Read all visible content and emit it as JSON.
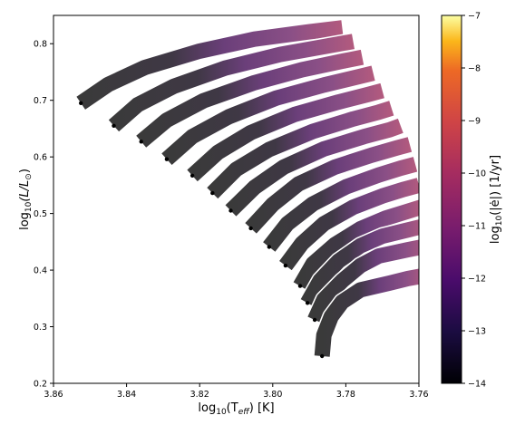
{
  "chart_data": {
    "type": "line",
    "title": "",
    "xlabel_prefix": "log",
    "xlabel_sub": "10",
    "xlabel_arg_open": "(T",
    "xlabel_arg_sub": "eff",
    "xlabel_suffix": ") [K]",
    "ylabel_prefix": "log",
    "ylabel_sub": "10",
    "ylabel_arg": "(L/L",
    "ylabel_arg_sub": "⊙",
    "ylabel_suffix": ")",
    "xlim": [
      3.86,
      3.76
    ],
    "ylim": [
      0.2,
      0.85
    ],
    "x_ticks": [
      "3.86",
      "3.84",
      "3.82",
      "3.80",
      "3.78",
      "3.76"
    ],
    "x_tick_values": [
      3.86,
      3.84,
      3.82,
      3.8,
      3.78,
      3.76
    ],
    "y_ticks": [
      "0.2",
      "0.3",
      "0.4",
      "0.5",
      "0.6",
      "0.7",
      "0.8"
    ],
    "y_tick_values": [
      0.2,
      0.3,
      0.4,
      0.5,
      0.6,
      0.7,
      0.8
    ],
    "grid": false,
    "colorbar": {
      "label_prefix": "log",
      "label_sub": "10",
      "label_suffix": "(|ė|) [1/yr]",
      "range": [
        -14,
        -7
      ],
      "ticks": [
        "−7",
        "−8",
        "−9",
        "−10",
        "−11",
        "−12",
        "−13",
        "−14"
      ],
      "tick_values": [
        -7,
        -8,
        -9,
        -10,
        -11,
        -12,
        -13,
        -14
      ],
      "colormap": "inferno"
    },
    "series": [
      {
        "x": [
          3.8525,
          3.845,
          3.835,
          3.82,
          3.805,
          3.79,
          3.781
        ],
        "y": [
          0.695,
          0.728,
          0.758,
          0.787,
          0.808,
          0.821,
          0.828
        ]
      },
      {
        "x": [
          3.8435,
          3.837,
          3.827,
          3.813,
          3.798,
          3.785,
          3.778
        ],
        "y": [
          0.655,
          0.692,
          0.725,
          0.757,
          0.781,
          0.796,
          0.804
        ]
      },
      {
        "x": [
          3.836,
          3.829,
          3.819,
          3.805,
          3.792,
          3.781,
          3.7755
        ],
        "y": [
          0.627,
          0.665,
          0.699,
          0.731,
          0.754,
          0.769,
          0.776
        ]
      },
      {
        "x": [
          3.829,
          3.822,
          3.812,
          3.799,
          3.786,
          3.777,
          3.7725
        ],
        "y": [
          0.596,
          0.636,
          0.671,
          0.704,
          0.727,
          0.741,
          0.748
        ]
      },
      {
        "x": [
          3.822,
          3.815,
          3.806,
          3.794,
          3.782,
          3.774,
          3.77
        ],
        "y": [
          0.567,
          0.608,
          0.643,
          0.675,
          0.697,
          0.71,
          0.717
        ]
      },
      {
        "x": [
          3.8165,
          3.81,
          3.801,
          3.789,
          3.778,
          3.771,
          3.7675
        ],
        "y": [
          0.536,
          0.578,
          0.613,
          0.645,
          0.667,
          0.679,
          0.686
        ]
      },
      {
        "x": [
          3.8115,
          3.805,
          3.797,
          3.786,
          3.775,
          3.768,
          3.765
        ],
        "y": [
          0.505,
          0.546,
          0.582,
          0.614,
          0.636,
          0.648,
          0.655
        ]
      },
      {
        "x": [
          3.806,
          3.8,
          3.793,
          3.783,
          3.773,
          3.766,
          3.7625
        ],
        "y": [
          0.474,
          0.516,
          0.552,
          0.582,
          0.603,
          0.616,
          0.622
        ]
      },
      {
        "x": [
          3.801,
          3.796,
          3.789,
          3.78,
          3.771,
          3.765,
          3.761
        ],
        "y": [
          0.441,
          0.482,
          0.517,
          0.547,
          0.568,
          0.58,
          0.587
        ]
      },
      {
        "x": [
          3.7965,
          3.792,
          3.786,
          3.778,
          3.77,
          3.764,
          3.76
        ],
        "y": [
          0.408,
          0.447,
          0.482,
          0.511,
          0.531,
          0.543,
          0.55
        ]
      },
      {
        "x": [
          3.7925,
          3.789,
          3.783,
          3.776,
          3.769,
          3.763,
          3.7595
        ],
        "y": [
          0.372,
          0.411,
          0.445,
          0.473,
          0.492,
          0.504,
          0.511
        ]
      },
      {
        "x": [
          3.7905,
          3.787,
          3.782,
          3.776,
          3.77,
          3.763,
          3.7585
        ],
        "y": [
          0.342,
          0.382,
          0.416,
          0.443,
          0.46,
          0.471,
          0.478
        ]
      },
      {
        "x": [
          3.7885,
          3.786,
          3.781,
          3.776,
          3.771,
          3.763,
          3.7575
        ],
        "y": [
          0.312,
          0.348,
          0.381,
          0.408,
          0.425,
          0.436,
          0.443
        ]
      },
      {
        "x": [
          3.7865,
          3.786,
          3.784,
          3.781,
          3.776,
          3.768,
          3.763,
          3.758
        ],
        "y": [
          0.248,
          0.285,
          0.318,
          0.344,
          0.365,
          0.377,
          0.385,
          0.391
        ]
      }
    ]
  }
}
